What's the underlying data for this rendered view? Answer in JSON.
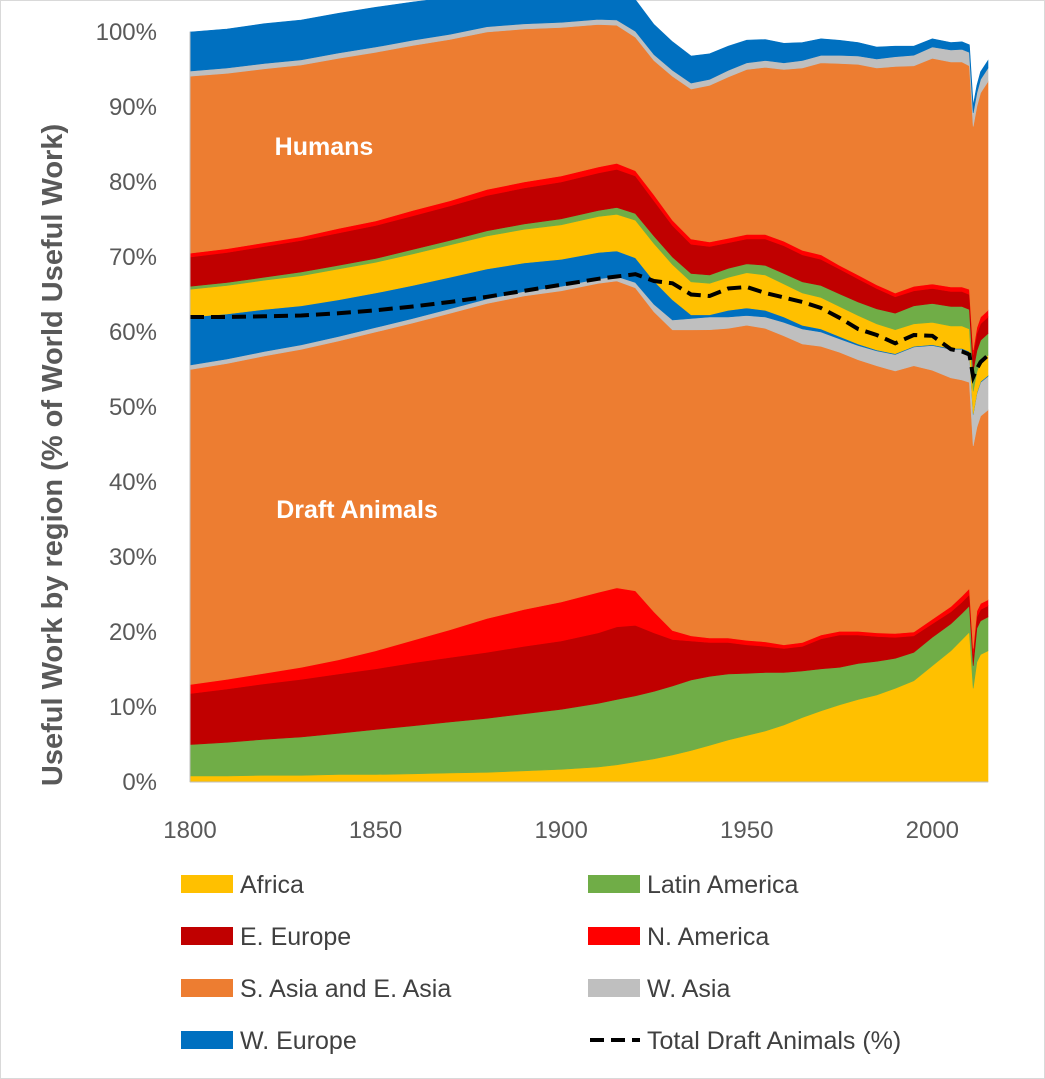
{
  "chart_data": {
    "type": "area",
    "stacking": "percent",
    "ylabel": "Useful Work by region (% of World Useful Work)",
    "xlabel": "",
    "xlim": [
      1800,
      2015
    ],
    "ylim": [
      0,
      100
    ],
    "x_ticks": [
      "1800",
      "1850",
      "1900",
      "1950",
      "2000"
    ],
    "y_ticks": [
      "0%",
      "10%",
      "20%",
      "30%",
      "40%",
      "50%",
      "60%",
      "70%",
      "80%",
      "90%",
      "100%"
    ],
    "grid": false,
    "legend_position": "bottom",
    "annotations": [
      "Humans",
      "Draft Animals"
    ],
    "x": [
      1800,
      1810,
      1820,
      1830,
      1840,
      1850,
      1860,
      1870,
      1880,
      1890,
      1900,
      1910,
      1915,
      1920,
      1925,
      1930,
      1935,
      1940,
      1945,
      1950,
      1955,
      1960,
      1965,
      1970,
      1975,
      1980,
      1985,
      1990,
      1995,
      2000,
      2005,
      2008,
      2010,
      2011,
      2012,
      2013,
      2015
    ],
    "groups": [
      {
        "name": "Draft Animals",
        "series": [
          {
            "name": "Africa",
            "color": "#ffc000",
            "values": [
              0.8,
              0.8,
              0.9,
              0.9,
              1.0,
              1.0,
              1.1,
              1.2,
              1.3,
              1.5,
              1.7,
              2.0,
              2.3,
              2.7,
              3.1,
              3.6,
              4.2,
              4.9,
              5.6,
              6.2,
              6.8,
              7.6,
              8.6,
              9.5,
              10.3,
              11.0,
              11.6,
              12.5,
              13.5,
              15.5,
              17.5,
              19.0,
              20.0,
              12.5,
              16.0,
              17.0,
              17.5
            ]
          },
          {
            "name": "Latin America",
            "color": "#70ad47",
            "values": [
              4.2,
              4.5,
              4.8,
              5.1,
              5.5,
              6.0,
              6.4,
              6.8,
              7.2,
              7.6,
              8.0,
              8.5,
              8.7,
              8.8,
              9.0,
              9.2,
              9.4,
              9.2,
              8.8,
              8.3,
              7.8,
              7.0,
              6.2,
              5.6,
              5.0,
              4.8,
              4.5,
              4.0,
              3.8,
              3.8,
              3.6,
              3.5,
              3.5,
              3.0,
              4.5,
              4.5,
              4.5
            ]
          },
          {
            "name": "E. Europe",
            "color": "#c00000",
            "values": [
              6.8,
              7.1,
              7.4,
              7.7,
              7.9,
              8.1,
              8.4,
              8.6,
              8.8,
              9.0,
              9.1,
              9.4,
              9.7,
              9.4,
              7.8,
              6.2,
              5.2,
              4.5,
              4.2,
              3.8,
              3.5,
              3.2,
              3.3,
              4.0,
              4.3,
              3.8,
              3.3,
              2.8,
              2.2,
              1.8,
              1.6,
              1.5,
              1.5,
              1.5,
              1.5,
              1.5,
              1.5
            ]
          },
          {
            "name": "N. America",
            "color": "#ff0000",
            "values": [
              1.2,
              1.3,
              1.4,
              1.6,
              1.9,
              2.4,
              3.0,
              3.7,
              4.5,
              4.9,
              5.2,
              5.4,
              5.2,
              4.6,
              2.8,
              1.2,
              0.7,
              0.6,
              0.6,
              0.6,
              0.6,
              0.5,
              0.5,
              0.5,
              0.5,
              0.5,
              0.5,
              0.5,
              0.5,
              0.6,
              0.7,
              0.8,
              0.8,
              0.8,
              0.8,
              0.8,
              0.8
            ]
          },
          {
            "name": "S. Asia and E. Asia",
            "color": "#ed7d31",
            "values": [
              42.0,
              42.1,
              42.3,
              42.4,
              42.5,
              42.5,
              42.3,
              42.2,
              42.0,
              41.8,
              41.5,
              41.2,
              40.9,
              40.4,
              40.0,
              40.1,
              40.8,
              41.1,
              41.3,
              42.0,
              41.8,
              41.2,
              39.8,
              38.5,
              37.2,
              36.2,
              35.6,
              35.0,
              35.5,
              33.2,
              30.5,
              28.8,
              27.5,
              27.0,
              24.5,
              25.0,
              25.3
            ]
          },
          {
            "name": "W. Asia",
            "color": "#bfbfbf",
            "values": [
              0.6,
              0.6,
              0.6,
              0.6,
              0.6,
              0.6,
              0.6,
              0.6,
              0.6,
              0.6,
              0.6,
              0.6,
              0.6,
              0.7,
              1.0,
              1.3,
              1.5,
              1.7,
              1.5,
              1.3,
              1.5,
              1.8,
              2.0,
              1.9,
              1.8,
              1.9,
              2.0,
              2.2,
              2.5,
              3.3,
              3.8,
              4.1,
              4.0,
              4.2,
              4.5,
              4.5,
              4.5
            ]
          },
          {
            "name": "W. Europe",
            "color": "#0070c0",
            "values": [
              6.4,
              6.0,
              5.6,
              5.2,
              4.9,
              4.6,
              4.4,
              4.2,
              4.0,
              3.8,
              3.6,
              3.5,
              3.4,
              3.3,
              3.1,
              2.7,
              0.5,
              0.3,
              0.9,
              1.0,
              0.9,
              0.7,
              0.5,
              0.4,
              0.3,
              0.2,
              0.1,
              0.1,
              0.1,
              0.1,
              0.1,
              0.1,
              0.1,
              0.1,
              0.1,
              0.1,
              0.1
            ]
          }
        ]
      },
      {
        "name": "Humans",
        "series": [
          {
            "name": "Africa",
            "color": "#ffc000",
            "values": [
              3.7,
              3.8,
              3.9,
              4.0,
              4.1,
              4.1,
              4.2,
              4.3,
              4.4,
              4.5,
              4.6,
              4.8,
              4.9,
              5.0,
              5.0,
              4.7,
              4.4,
              4.2,
              4.4,
              4.7,
              4.7,
              4.4,
              4.3,
              4.2,
              4.0,
              3.8,
              3.5,
              3.2,
              3.0,
              3.0,
              3.0,
              3.0,
              3.0,
              3.0,
              2.8,
              2.7,
              2.7
            ]
          },
          {
            "name": "Latin America",
            "color": "#70ad47",
            "values": [
              0.4,
              0.4,
              0.4,
              0.5,
              0.5,
              0.5,
              0.6,
              0.6,
              0.7,
              0.7,
              0.8,
              0.8,
              0.9,
              0.9,
              1.0,
              1.0,
              1.1,
              1.1,
              1.2,
              1.2,
              1.3,
              1.4,
              1.5,
              1.6,
              1.7,
              1.8,
              2.0,
              2.2,
              2.4,
              2.5,
              2.6,
              2.6,
              2.6,
              2.7,
              2.8,
              2.8,
              2.9
            ]
          },
          {
            "name": "E. Europe",
            "color": "#c00000",
            "values": [
              3.9,
              4.0,
              4.1,
              4.2,
              4.3,
              4.4,
              4.5,
              4.6,
              4.7,
              4.8,
              4.9,
              5.0,
              5.1,
              5.0,
              4.7,
              4.2,
              3.9,
              3.8,
              3.4,
              3.3,
              3.5,
              3.7,
              3.6,
              3.5,
              3.3,
              3.1,
              2.7,
              2.2,
              2.0,
              2.0,
              2.0,
              2.0,
              2.0,
              2.1,
              2.3,
              2.2,
              2.2
            ]
          },
          {
            "name": "N. America",
            "color": "#ff0000",
            "values": [
              0.5,
              0.5,
              0.5,
              0.5,
              0.6,
              0.6,
              0.7,
              0.7,
              0.8,
              0.8,
              0.8,
              0.8,
              0.8,
              0.7,
              0.8,
              0.7,
              0.7,
              0.6,
              0.6,
              0.6,
              0.6,
              0.6,
              0.6,
              0.6,
              0.5,
              0.5,
              0.5,
              0.5,
              0.6,
              0.6,
              0.6,
              0.6,
              0.7,
              0.7,
              0.8,
              0.9,
              0.9
            ]
          },
          {
            "name": "S. Asia and E. Asia",
            "color": "#ed7d31",
            "values": [
              23.6,
              23.4,
              23.2,
              22.9,
              22.7,
              22.5,
              22.0,
              21.5,
              21.0,
              20.4,
              19.8,
              19.0,
              18.4,
              17.8,
              17.9,
              19.2,
              20.0,
              20.9,
              21.5,
              22.0,
              22.3,
              22.9,
              24.3,
              25.6,
              26.9,
              28.1,
              28.9,
              30.2,
              29.4,
              30.1,
              30.0,
              30.0,
              29.8,
              29.8,
              29.5,
              29.9,
              30.5
            ]
          },
          {
            "name": "W. Asia",
            "color": "#bfbfbf",
            "values": [
              0.7,
              0.7,
              0.7,
              0.7,
              0.7,
              0.7,
              0.7,
              0.7,
              0.7,
              0.7,
              0.7,
              0.7,
              0.7,
              0.8,
              0.8,
              0.8,
              0.8,
              0.8,
              0.9,
              0.9,
              0.9,
              0.9,
              1.0,
              1.0,
              1.1,
              1.1,
              1.2,
              1.3,
              1.4,
              1.5,
              1.6,
              1.7,
              1.8,
              1.8,
              1.8,
              1.8,
              1.8
            ]
          },
          {
            "name": "W. Europe",
            "color": "#0070c0",
            "values": [
              5.2,
              5.2,
              5.3,
              5.3,
              5.3,
              5.3,
              5.1,
              4.9,
              4.8,
              4.6,
              4.6,
              4.4,
              4.4,
              4.2,
              4.0,
              3.8,
              3.6,
              3.4,
              3.2,
              3.0,
              2.8,
              2.6,
              2.4,
              2.2,
              2.0,
              1.8,
              1.6,
              1.4,
              1.2,
              1.1,
              1.0,
              1.0,
              1.0,
              1.0,
              1.0,
              1.0,
              1.0
            ]
          }
        ]
      }
    ],
    "total_draft_animals_line": {
      "name": "Total Draft Animals (%)",
      "color": "#000000",
      "style": "dashed",
      "values": [
        62.0,
        62.0,
        62.1,
        62.2,
        62.5,
        62.9,
        63.4,
        64.0,
        64.7,
        65.5,
        66.3,
        67.1,
        67.4,
        67.7,
        66.8,
        66.5,
        65.0,
        64.8,
        65.8,
        66.0,
        65.2,
        64.6,
        64.0,
        63.2,
        61.9,
        60.4,
        59.6,
        58.5,
        59.6,
        59.5,
        57.7,
        57.4,
        57.0,
        54.0,
        55.1,
        56.0,
        56.9
      ]
    }
  },
  "legend": [
    {
      "label": "Africa",
      "color": "#ffc000",
      "kind": "box"
    },
    {
      "label": "Latin America",
      "color": "#70ad47",
      "kind": "box"
    },
    {
      "label": "E. Europe",
      "color": "#c00000",
      "kind": "box"
    },
    {
      "label": "N. America",
      "color": "#ff0000",
      "kind": "box"
    },
    {
      "label": "S. Asia and E. Asia",
      "color": "#ed7d31",
      "kind": "box"
    },
    {
      "label": "W. Asia",
      "color": "#bfbfbf",
      "kind": "box"
    },
    {
      "label": "W. Europe",
      "color": "#0070c0",
      "kind": "box"
    },
    {
      "label": "Total Draft Animals (%)",
      "color": "#000000",
      "kind": "dash"
    }
  ]
}
